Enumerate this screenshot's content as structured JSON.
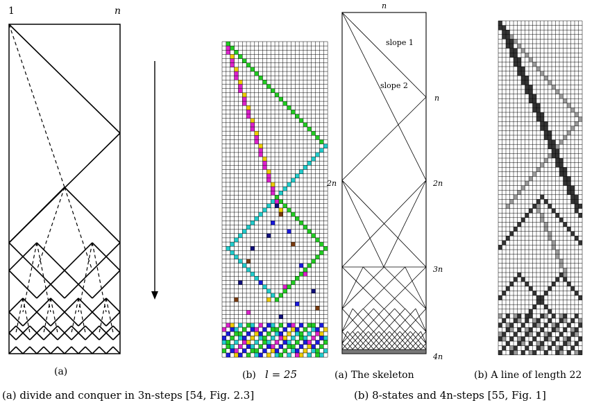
{
  "panel_a": {
    "label_1": "1",
    "label_n": "n",
    "subcaption": "(a)"
  },
  "panel_b": {
    "subcaption": "(b)",
    "l_text": "l = 25"
  },
  "skeleton": {
    "label_n_top": "n",
    "slope1": "slope 1",
    "slope2": "slope 2",
    "label_n_right": "n",
    "label_2n_left": "2n",
    "label_2n_right": "2n",
    "label_3n": "3n",
    "label_4n": "4n",
    "subcaption": "(a) The skeleton"
  },
  "line_panel": {
    "subcaption": "(b) A line of length 22"
  },
  "captions": {
    "left": "(a) divide and conquer in 3n-steps [54, Fig. 2.3]",
    "right": "(b) 8-states and 4n-steps [55, Fig. 1]"
  },
  "colors": {
    "green": "#22cc22",
    "cyan": "#22cccc",
    "magenta": "#dd22cc",
    "yellow": "#eecc00",
    "blue": "#1a1adc",
    "darkblue": "#10107a",
    "brown": "#7a3c10",
    "dark_cell": "#333333",
    "gray_cell": "#9a9a9a"
  }
}
